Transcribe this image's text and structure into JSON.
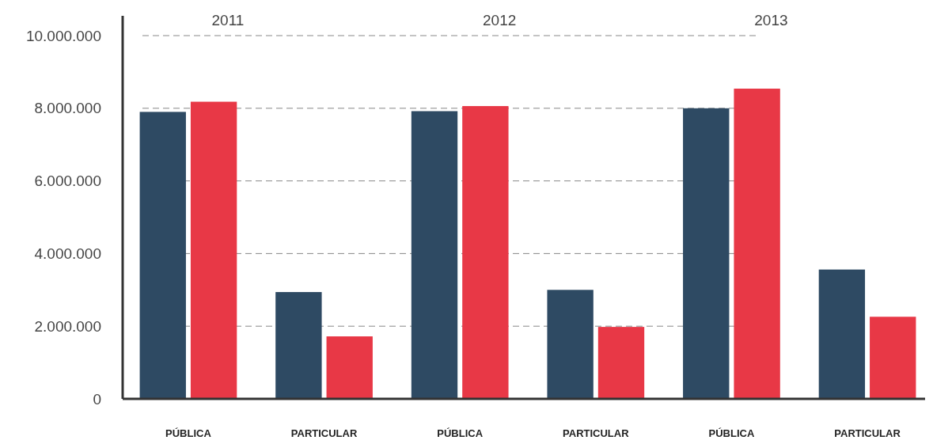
{
  "chart_data": {
    "type": "bar",
    "categories": [
      "PÚBLICA",
      "PARTICULAR",
      "PÚBLICA",
      "PARTICULAR",
      "PÚBLICA",
      "PARTICULAR"
    ],
    "series": [
      {
        "color": "#2e4a63",
        "values": [
          7900000,
          2940000,
          7920000,
          3000000,
          8000000,
          3560000
        ]
      },
      {
        "color": "#e83846",
        "values": [
          8180000,
          1720000,
          8060000,
          1980000,
          8540000,
          2260000
        ]
      }
    ],
    "ylim": [
      0,
      10000000
    ],
    "yticks": [
      0,
      {
        "value": 2000000,
        "label": "2.000.000"
      },
      {
        "value": 4000000,
        "label": "4.000.000"
      },
      {
        "value": 6000000,
        "label": "6.000.000"
      },
      {
        "value": 8000000,
        "label": "8.000.000"
      },
      {
        "value": 10000000,
        "label": "10.000.000"
      }
    ],
    "grid": "y",
    "annotations": [
      "2011",
      "2012",
      "2013"
    ]
  }
}
